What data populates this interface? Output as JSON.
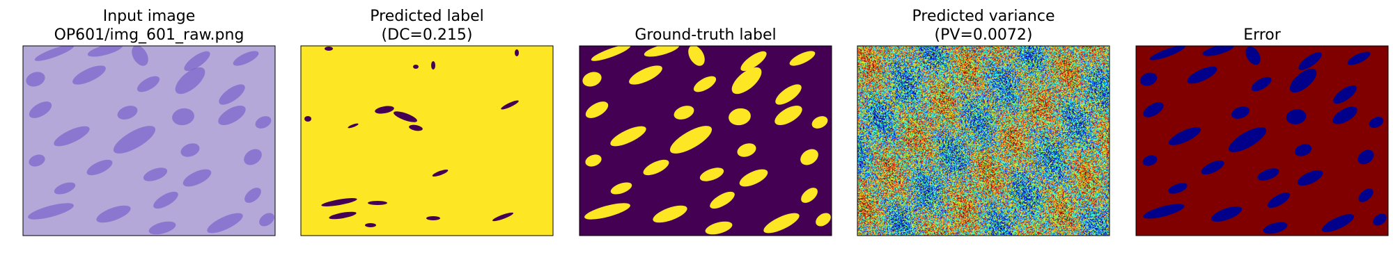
{
  "panels": [
    {
      "id": "input",
      "title_line1": "Input image",
      "title_line2": "OP601/img_601_raw.png",
      "kind": "stained-tissue-image",
      "colors": {
        "background": "#b4a8d8",
        "nuclei": "#6a4fc8"
      }
    },
    {
      "id": "predicted",
      "title_line1": "Predicted label",
      "title_line2": "(DC=0.215)",
      "kind": "binary-mask",
      "colors": {
        "background": "#fde725",
        "foreground": "#440154"
      }
    },
    {
      "id": "ground_truth",
      "title_line1": "",
      "title_line2": "Ground-truth label",
      "kind": "binary-mask",
      "colors": {
        "background": "#440154",
        "foreground": "#fde725"
      }
    },
    {
      "id": "variance",
      "title_line1": "Predicted variance",
      "title_line2": "(PV=0.0072)",
      "kind": "jet-noise-map",
      "colors": {
        "jet_low": "#00007f",
        "jet_mid": "#7fff7f",
        "jet_high": "#7f0000"
      }
    },
    {
      "id": "error",
      "title_line1": "",
      "title_line2": "Error",
      "kind": "binary-mask",
      "colors": {
        "background": "#800000",
        "foreground": "#00008b"
      }
    }
  ],
  "metrics": {
    "dc": 0.215,
    "pv": 0.0072
  }
}
